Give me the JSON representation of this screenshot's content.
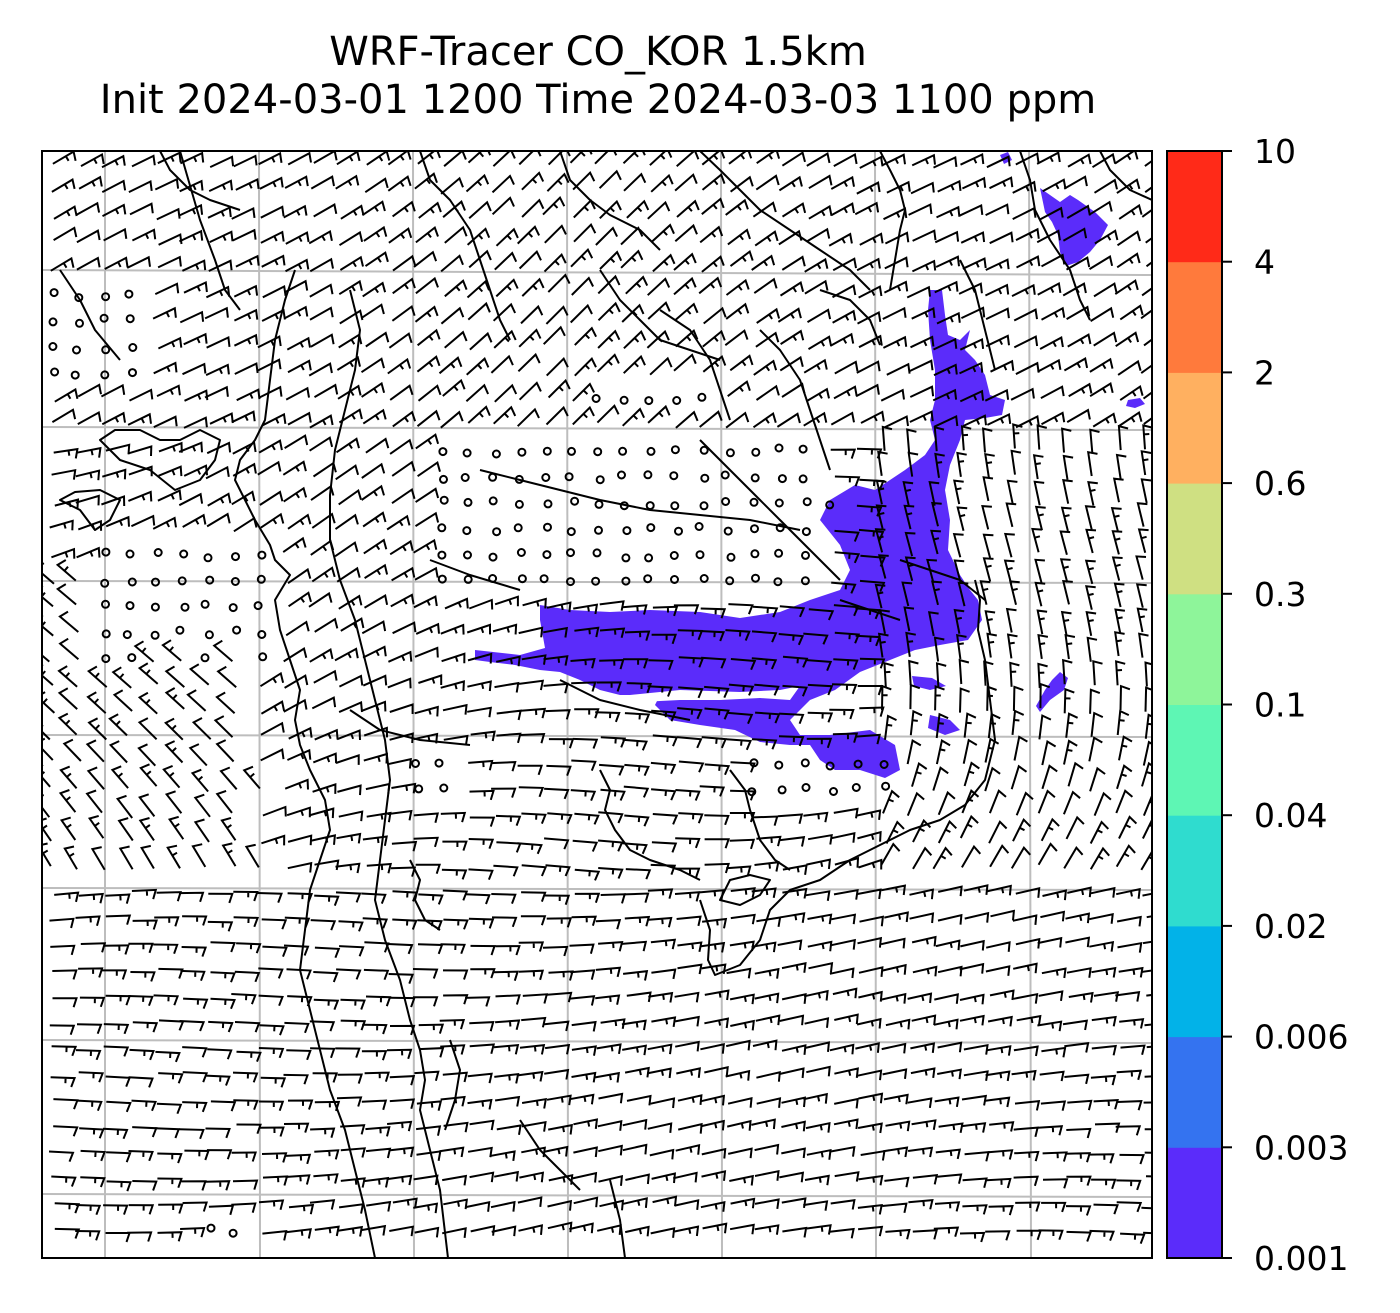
{
  "title": {
    "line1": "WRF-Tracer CO_KOR 1.5km",
    "line2": "Init 2024-03-01 1200 Time 2024-03-03 1100 ppm"
  },
  "colorbar": {
    "levels": [
      "0.001",
      "0.003",
      "0.006",
      "0.02",
      "0.04",
      "0.1",
      "0.3",
      "0.6",
      "2",
      "4",
      "10"
    ],
    "colors": [
      "#5b2cfa",
      "#3473f0",
      "#02b2e8",
      "#2fdccf",
      "#5ef6b4",
      "#8ef59a",
      "#cfe082",
      "#ffb060",
      "#ff7a3c",
      "#ff2a18"
    ]
  },
  "plume_color": "#5b2cfa",
  "grid_color": "#bdbdbd",
  "icon_names": [
    "wind-barb-icon",
    "calm-circle-icon"
  ]
}
